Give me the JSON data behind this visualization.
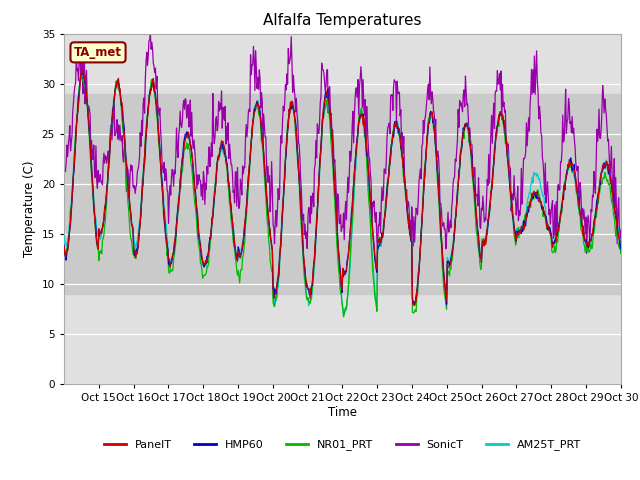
{
  "title": "Alfalfa Temperatures",
  "xlabel": "Time",
  "ylabel": "Temperature (C)",
  "ylim": [
    0,
    35
  ],
  "yticks": [
    0,
    5,
    10,
    15,
    20,
    25,
    30,
    35
  ],
  "background_color": "#ffffff",
  "plot_bg_color": "#e0e0e0",
  "shaded_region": [
    9,
    29
  ],
  "shaded_color": "#cacaca",
  "annotation_text": "TA_met",
  "annotation_box_color": "#ffffcc",
  "annotation_border_color": "#880000",
  "annotation_text_color": "#880000",
  "xtick_labels": [
    "Oct 15",
    "Oct 16",
    "Oct 17",
    "Oct 18",
    "Oct 19",
    "Oct 20",
    "Oct 21",
    "Oct 22",
    "Oct 23",
    "Oct 24",
    "Oct 25",
    "Oct 26",
    "Oct 27",
    "Oct 28",
    "Oct 29",
    "Oct 30"
  ],
  "series_PanelT_color": "#cc0000",
  "series_HMP60_color": "#0000cc",
  "series_NR01_PRT_color": "#00bb00",
  "series_SonicT_color": "#9900aa",
  "series_AM25T_PRT_color": "#00cccc",
  "legend_labels": [
    "PanelT",
    "HMP60",
    "NR01_PRT",
    "SonicT",
    "AM25T_PRT"
  ],
  "legend_colors": [
    "#cc0000",
    "#0000cc",
    "#00bb00",
    "#9900aa",
    "#00cccc"
  ]
}
